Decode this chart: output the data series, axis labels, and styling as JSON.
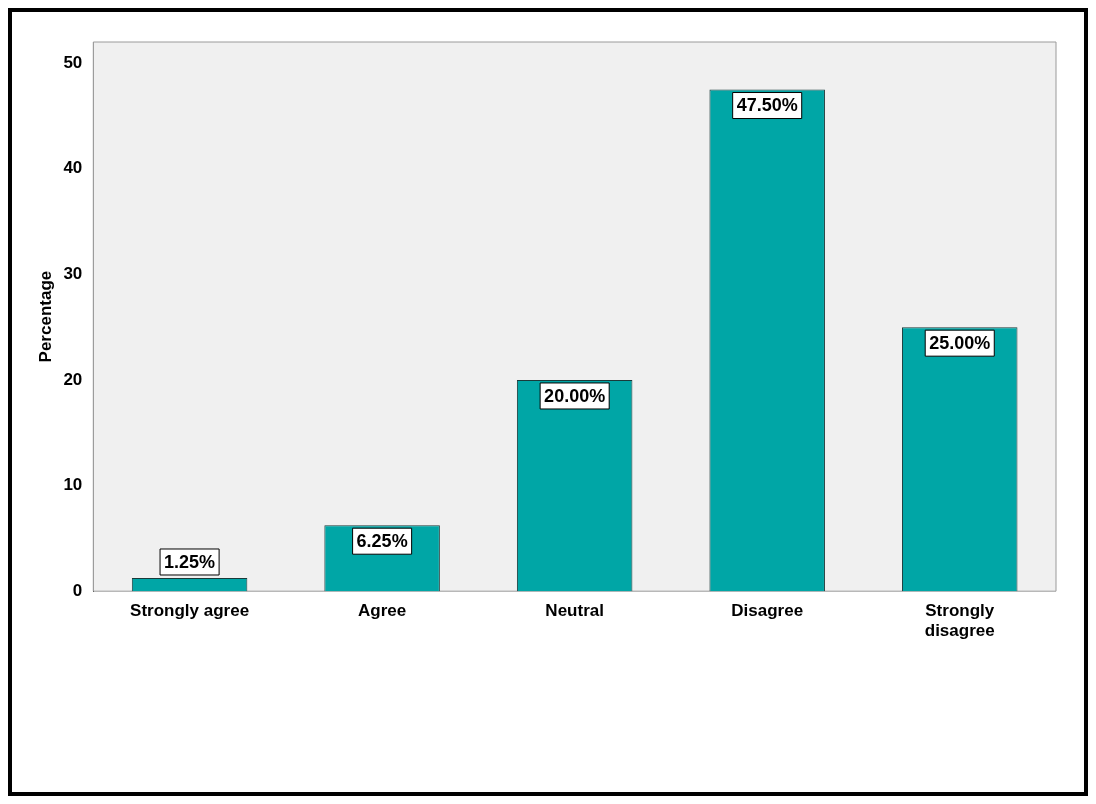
{
  "chart_data": {
    "type": "bar",
    "ylabel": "Percentage",
    "categories": [
      "Strongly agree",
      "Agree",
      "Neutral",
      "Disagree",
      "Strongly disagree"
    ],
    "values": [
      1.25,
      6.25,
      20,
      47.5,
      25
    ],
    "value_labels": [
      "1.25%",
      "6.25%",
      "20.00%",
      "47.50%",
      "25.00%"
    ],
    "color": "#00a6a6",
    "ylim": [
      0,
      52
    ],
    "yticks": [
      0,
      10,
      20,
      30,
      40,
      50
    ],
    "grid": false,
    "legend": false
  }
}
